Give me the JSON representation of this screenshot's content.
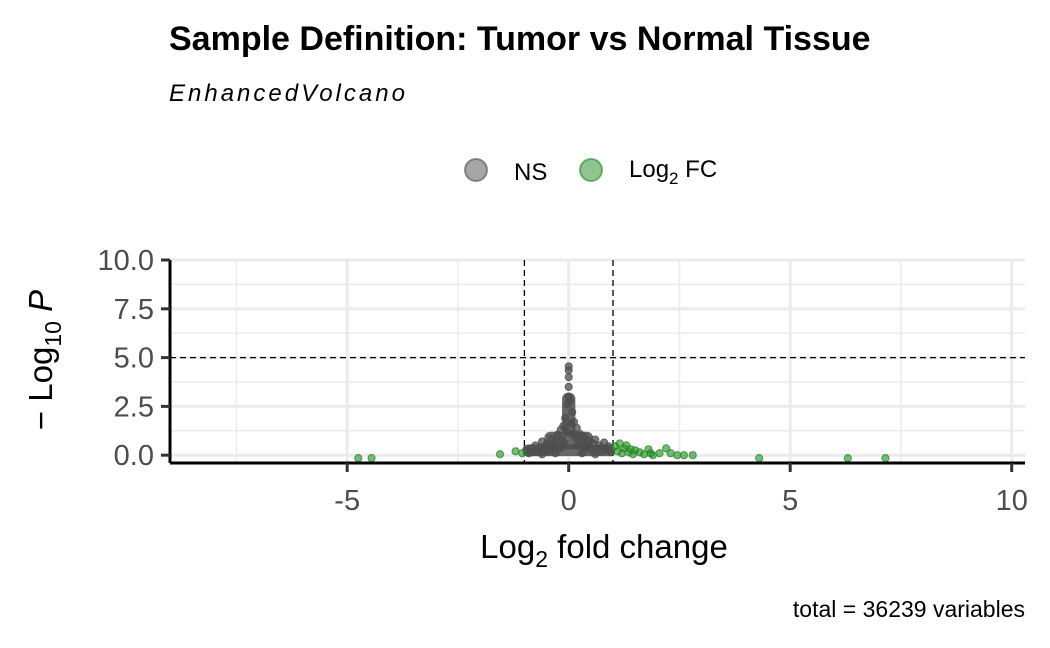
{
  "chart_data": {
    "type": "scatter",
    "title": "Sample Definition: Tumor vs Normal Tissue",
    "subtitle": "EnhancedVolcano",
    "xlabel": "Log2 fold change",
    "xlabel_parts": {
      "main": "Log",
      "sub": "2",
      "rest": " fold change"
    },
    "ylabel": "− Log10 P",
    "ylabel_parts": {
      "prefix": "− Log",
      "sub": "10",
      "rest": " P"
    },
    "caption": "total = 36239 variables",
    "xlim": [
      -9.0,
      10.3
    ],
    "ylim": [
      -0.4,
      10.0
    ],
    "x_ticks": [
      -5,
      0,
      5,
      10
    ],
    "x_tick_labels": [
      "-5",
      "0",
      "5",
      "10"
    ],
    "y_ticks": [
      0,
      2.5,
      5,
      7.5,
      10
    ],
    "y_tick_labels": [
      "0.0",
      "2.5",
      "5.0",
      "7.5",
      "10.0"
    ],
    "grid": true,
    "legend_position": "top",
    "thresholds": {
      "fc_cutoff": 1,
      "p_cutoff_neglog10": 5
    },
    "colors": {
      "ns": "#4d4d4d",
      "fc": "#228b22",
      "guide": "#000000"
    },
    "legend": [
      {
        "key": "ns",
        "label": "NS",
        "label_sub": "",
        "label_rest": ""
      },
      {
        "key": "fc",
        "label": "Log",
        "label_sub": "2",
        "label_rest": " FC"
      }
    ],
    "series": [
      {
        "name": "NS",
        "key": "ns",
        "points": [
          [
            -0.95,
            0.25
          ],
          [
            -0.9,
            0.1
          ],
          [
            -0.85,
            0.35
          ],
          [
            -0.8,
            0.15
          ],
          [
            -0.75,
            0.5
          ],
          [
            -0.7,
            0.2
          ],
          [
            -0.65,
            0.4
          ],
          [
            -0.6,
            0.7
          ],
          [
            -0.55,
            0.3
          ],
          [
            -0.5,
            0.55
          ],
          [
            -0.45,
            0.2
          ],
          [
            -0.4,
            0.85
          ],
          [
            -0.35,
            0.45
          ],
          [
            -0.3,
            0.65
          ],
          [
            -0.25,
            1.05
          ],
          [
            -0.2,
            0.35
          ],
          [
            -0.18,
            1.3
          ],
          [
            -0.15,
            0.8
          ],
          [
            -0.12,
            1.5
          ],
          [
            -0.1,
            0.6
          ],
          [
            -0.08,
            1.9
          ],
          [
            -0.05,
            1.2
          ],
          [
            -0.03,
            2.6
          ],
          [
            0.0,
            3.0
          ],
          [
            0.0,
            3.5
          ],
          [
            0.0,
            4.0
          ],
          [
            0.0,
            4.35
          ],
          [
            0.0,
            4.55
          ],
          [
            0.03,
            2.8
          ],
          [
            0.05,
            1.6
          ],
          [
            0.08,
            2.2
          ],
          [
            0.1,
            1.1
          ],
          [
            0.12,
            1.7
          ],
          [
            0.15,
            0.9
          ],
          [
            0.18,
            1.4
          ],
          [
            0.2,
            0.5
          ],
          [
            0.25,
            1.1
          ],
          [
            0.3,
            0.7
          ],
          [
            0.35,
            0.95
          ],
          [
            0.4,
            0.4
          ],
          [
            0.45,
            0.75
          ],
          [
            0.5,
            0.3
          ],
          [
            0.55,
            0.6
          ],
          [
            0.6,
            0.8
          ],
          [
            0.65,
            0.35
          ],
          [
            0.7,
            0.5
          ],
          [
            0.75,
            0.2
          ],
          [
            0.8,
            0.65
          ],
          [
            0.85,
            0.3
          ],
          [
            0.9,
            0.45
          ],
          [
            0.95,
            0.15
          ],
          [
            -0.6,
            0.05
          ],
          [
            0.6,
            0.05
          ],
          [
            -0.3,
            0.1
          ],
          [
            0.3,
            0.1
          ]
        ]
      },
      {
        "name": "Log2 FC",
        "key": "fc",
        "points": [
          [
            -4.75,
            -0.15
          ],
          [
            -4.45,
            -0.15
          ],
          [
            -1.55,
            0.05
          ],
          [
            -1.2,
            0.2
          ],
          [
            -1.05,
            0.1
          ],
          [
            1.05,
            0.45
          ],
          [
            1.1,
            0.2
          ],
          [
            1.15,
            0.6
          ],
          [
            1.2,
            0.1
          ],
          [
            1.25,
            0.35
          ],
          [
            1.3,
            0.5
          ],
          [
            1.35,
            0.15
          ],
          [
            1.4,
            0.3
          ],
          [
            1.45,
            0.05
          ],
          [
            1.5,
            0.25
          ],
          [
            1.6,
            0.15
          ],
          [
            1.7,
            0.05
          ],
          [
            1.8,
            0.3
          ],
          [
            1.85,
            0.1
          ],
          [
            1.9,
            0.0
          ],
          [
            2.05,
            0.1
          ],
          [
            2.2,
            0.35
          ],
          [
            2.3,
            0.1
          ],
          [
            2.45,
            0.0
          ],
          [
            2.6,
            0.0
          ],
          [
            2.8,
            0.0
          ],
          [
            4.3,
            -0.15
          ],
          [
            6.3,
            -0.15
          ],
          [
            7.15,
            -0.15
          ]
        ]
      }
    ]
  }
}
